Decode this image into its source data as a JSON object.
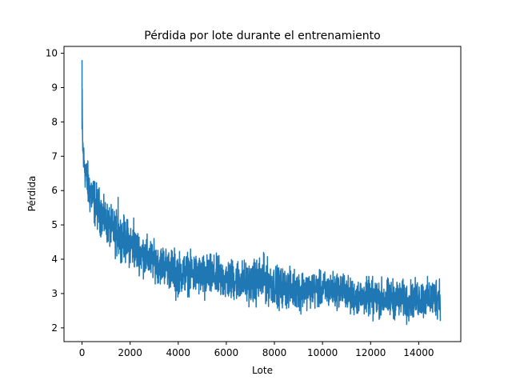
{
  "chart_data": {
    "type": "line",
    "title": "Pérdida por lote durante el entrenamiento",
    "xlabel": "Lote",
    "ylabel": "Pérdida",
    "xlim": [
      -750,
      15750
    ],
    "ylim": [
      1.6,
      10.2
    ],
    "xticks": [
      0,
      2000,
      4000,
      6000,
      8000,
      10000,
      12000,
      14000
    ],
    "yticks": [
      2,
      3,
      4,
      5,
      6,
      7,
      8,
      9,
      10
    ],
    "grid": false,
    "legend": "none",
    "series": [
      {
        "color": "#1f77b4",
        "x": [
          0,
          20,
          60,
          120,
          200,
          300,
          400,
          500,
          600,
          700,
          800,
          900,
          1000,
          1200,
          1400,
          1600,
          1800,
          2000,
          2200,
          2400,
          2600,
          2800,
          3000,
          3200,
          3400,
          3600,
          3800,
          4000,
          4500,
          5000,
          5500,
          6000,
          6500,
          7000,
          7500,
          8000,
          8500,
          9000,
          9500,
          10000,
          10500,
          11000,
          11100,
          11500,
          12000,
          12500,
          13000,
          13500,
          14000,
          14500,
          14900
        ],
        "upper": [
          9.8,
          8.1,
          7.6,
          7.3,
          7.0,
          6.8,
          6.7,
          6.5,
          6.3,
          6.2,
          6.0,
          5.9,
          5.8,
          5.6,
          5.5,
          5.4,
          5.3,
          5.2,
          5.0,
          4.9,
          4.8,
          4.7,
          4.6,
          4.5,
          4.5,
          4.4,
          4.4,
          4.3,
          4.3,
          4.2,
          4.2,
          4.1,
          4.1,
          4.0,
          4.2,
          3.9,
          3.8,
          3.8,
          3.7,
          3.7,
          3.7,
          3.7,
          3.5,
          3.5,
          3.5,
          3.5,
          3.5,
          3.4,
          3.5,
          3.5,
          3.7
        ],
        "lower": [
          7.3,
          6.8,
          6.2,
          6.0,
          5.6,
          5.2,
          5.1,
          4.9,
          4.8,
          4.7,
          4.6,
          4.5,
          4.4,
          4.2,
          4.0,
          3.9,
          3.8,
          3.7,
          3.6,
          3.5,
          3.4,
          3.3,
          3.3,
          3.2,
          3.2,
          3.1,
          2.9,
          2.9,
          2.9,
          2.8,
          2.8,
          2.7,
          2.7,
          2.6,
          2.6,
          2.6,
          2.5,
          2.5,
          2.5,
          2.5,
          2.5,
          2.5,
          2.3,
          2.3,
          2.3,
          2.2,
          2.2,
          2.2,
          2.2,
          2.2,
          2.2
        ],
        "spikes": [
          [
            3900,
            2.8
          ],
          [
            5100,
            2.8
          ],
          [
            8200,
            2.5
          ],
          [
            9100,
            2.4
          ],
          [
            12100,
            2.2
          ],
          [
            13500,
            2.1
          ],
          [
            1500,
            5.8
          ],
          [
            2150,
            5.2
          ],
          [
            7550,
            4.2
          ]
        ]
      }
    ]
  }
}
